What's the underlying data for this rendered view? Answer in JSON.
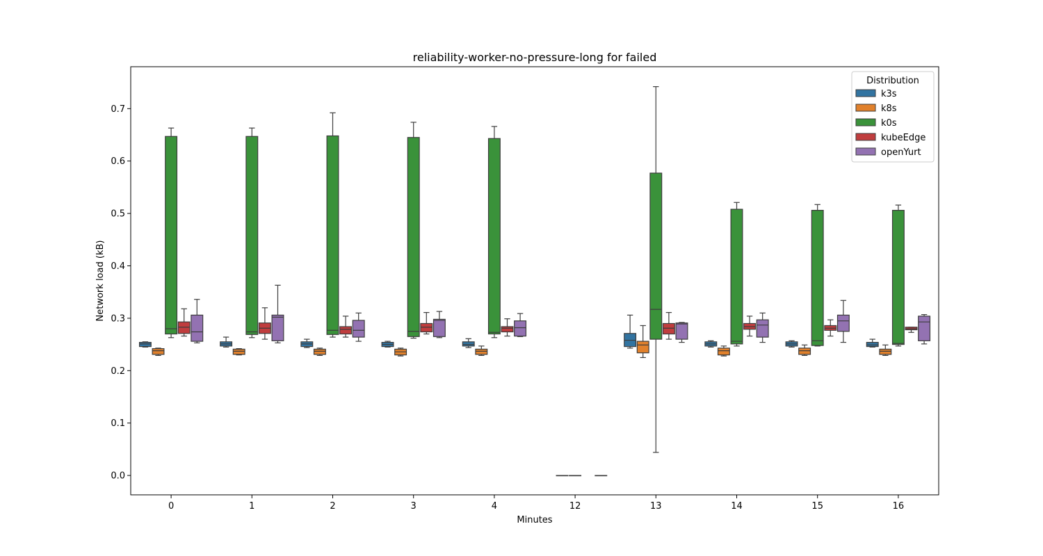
{
  "chart_data": {
    "type": "box",
    "title": "reliability-worker-no-pressure-long for failed",
    "xlabel": "Minutes",
    "ylabel": "Network load (kB)",
    "ylim": [
      -0.037,
      0.78
    ],
    "yticks": [
      0.0,
      0.1,
      0.2,
      0.3,
      0.4,
      0.5,
      0.6,
      0.7
    ],
    "ytick_labels": [
      "0.0",
      "0.1",
      "0.2",
      "0.3",
      "0.4",
      "0.5",
      "0.6",
      "0.7"
    ],
    "categories": [
      "0",
      "1",
      "2",
      "3",
      "4",
      "12",
      "13",
      "14",
      "15",
      "16"
    ],
    "legend": {
      "title": "Distribution",
      "placement": "top-right"
    },
    "series": [
      {
        "name": "k3s",
        "color": "#3274a1",
        "boxes": [
          {
            "min": 0.245,
            "q1": 0.246,
            "median": 0.251,
            "q3": 0.254,
            "max": 0.255
          },
          {
            "min": 0.245,
            "q1": 0.247,
            "median": 0.251,
            "q3": 0.255,
            "max": 0.264
          },
          {
            "min": 0.244,
            "q1": 0.246,
            "median": 0.251,
            "q3": 0.255,
            "max": 0.26
          },
          {
            "min": 0.245,
            "q1": 0.246,
            "median": 0.25,
            "q3": 0.254,
            "max": 0.256
          },
          {
            "min": 0.244,
            "q1": 0.247,
            "median": 0.25,
            "q3": 0.255,
            "max": 0.261
          },
          null,
          {
            "min": 0.243,
            "q1": 0.246,
            "median": 0.258,
            "q3": 0.271,
            "max": 0.306
          },
          {
            "min": 0.245,
            "q1": 0.247,
            "median": 0.251,
            "q3": 0.255,
            "max": 0.257
          },
          {
            "min": 0.245,
            "q1": 0.247,
            "median": 0.251,
            "q3": 0.255,
            "max": 0.257
          },
          {
            "min": 0.245,
            "q1": 0.246,
            "median": 0.249,
            "q3": 0.254,
            "max": 0.26
          }
        ]
      },
      {
        "name": "k8s",
        "color": "#e1812c",
        "boxes": [
          {
            "min": 0.229,
            "q1": 0.231,
            "median": 0.238,
            "q3": 0.242,
            "max": 0.243
          },
          {
            "min": 0.23,
            "q1": 0.231,
            "median": 0.237,
            "q3": 0.241,
            "max": 0.242
          },
          {
            "min": 0.229,
            "q1": 0.231,
            "median": 0.237,
            "q3": 0.241,
            "max": 0.243
          },
          {
            "min": 0.228,
            "q1": 0.23,
            "median": 0.236,
            "q3": 0.241,
            "max": 0.243
          },
          {
            "min": 0.229,
            "q1": 0.231,
            "median": 0.237,
            "q3": 0.241,
            "max": 0.247
          },
          {
            "min": 0.0,
            "q1": 0.0,
            "median": 0.0,
            "q3": 0.0,
            "max": 0.0
          },
          {
            "min": 0.225,
            "q1": 0.234,
            "median": 0.249,
            "q3": 0.256,
            "max": 0.286
          },
          {
            "min": 0.228,
            "q1": 0.23,
            "median": 0.238,
            "q3": 0.243,
            "max": 0.247
          },
          {
            "min": 0.229,
            "q1": 0.231,
            "median": 0.238,
            "q3": 0.243,
            "max": 0.249
          },
          {
            "min": 0.229,
            "q1": 0.231,
            "median": 0.237,
            "q3": 0.241,
            "max": 0.249
          }
        ]
      },
      {
        "name": "k0s",
        "color": "#3a923a",
        "boxes": [
          {
            "min": 0.263,
            "q1": 0.27,
            "median": 0.28,
            "q3": 0.647,
            "max": 0.663
          },
          {
            "min": 0.263,
            "q1": 0.269,
            "median": 0.274,
            "q3": 0.647,
            "max": 0.663
          },
          {
            "min": 0.264,
            "q1": 0.269,
            "median": 0.277,
            "q3": 0.648,
            "max": 0.692
          },
          {
            "min": 0.262,
            "q1": 0.265,
            "median": 0.275,
            "q3": 0.645,
            "max": 0.674
          },
          {
            "min": 0.263,
            "q1": 0.27,
            "median": 0.273,
            "q3": 0.643,
            "max": 0.666
          },
          {
            "min": 0.0,
            "q1": 0.0,
            "median": 0.0,
            "q3": 0.0,
            "max": 0.0
          },
          {
            "min": 0.044,
            "q1": 0.26,
            "median": 0.317,
            "q3": 0.577,
            "max": 0.742
          },
          {
            "min": 0.247,
            "q1": 0.251,
            "median": 0.256,
            "q3": 0.508,
            "max": 0.521
          },
          {
            "min": 0.247,
            "q1": 0.248,
            "median": 0.257,
            "q3": 0.506,
            "max": 0.517
          },
          {
            "min": 0.247,
            "q1": 0.25,
            "median": 0.252,
            "q3": 0.506,
            "max": 0.516
          }
        ]
      },
      {
        "name": "kubeEdge",
        "color": "#c03d3e",
        "boxes": [
          {
            "min": 0.266,
            "q1": 0.271,
            "median": 0.283,
            "q3": 0.293,
            "max": 0.318
          },
          {
            "min": 0.26,
            "q1": 0.271,
            "median": 0.281,
            "q3": 0.291,
            "max": 0.32
          },
          {
            "min": 0.264,
            "q1": 0.27,
            "median": 0.279,
            "q3": 0.284,
            "max": 0.304
          },
          {
            "min": 0.27,
            "q1": 0.274,
            "median": 0.283,
            "q3": 0.29,
            "max": 0.311
          },
          {
            "min": 0.266,
            "q1": 0.274,
            "median": 0.281,
            "q3": 0.284,
            "max": 0.299
          },
          null,
          {
            "min": 0.26,
            "q1": 0.27,
            "median": 0.281,
            "q3": 0.29,
            "max": 0.311
          },
          {
            "min": 0.266,
            "q1": 0.279,
            "median": 0.284,
            "q3": 0.29,
            "max": 0.304
          },
          {
            "min": 0.266,
            "q1": 0.277,
            "median": 0.281,
            "q3": 0.286,
            "max": 0.297
          },
          {
            "min": 0.273,
            "q1": 0.278,
            "median": 0.28,
            "q3": 0.283,
            "max": 0.283
          }
        ]
      },
      {
        "name": "openYurt",
        "color": "#9372b2",
        "boxes": [
          {
            "min": 0.253,
            "q1": 0.256,
            "median": 0.274,
            "q3": 0.306,
            "max": 0.336
          },
          {
            "min": 0.253,
            "q1": 0.257,
            "median": 0.302,
            "q3": 0.306,
            "max": 0.363
          },
          {
            "min": 0.256,
            "q1": 0.264,
            "median": 0.277,
            "q3": 0.296,
            "max": 0.31
          },
          {
            "min": 0.263,
            "q1": 0.265,
            "median": 0.296,
            "q3": 0.298,
            "max": 0.313
          },
          {
            "min": 0.265,
            "q1": 0.266,
            "median": 0.282,
            "q3": 0.295,
            "max": 0.309
          },
          {
            "min": 0.0,
            "q1": 0.0,
            "median": 0.0,
            "q3": 0.0,
            "max": 0.0
          },
          {
            "min": 0.254,
            "q1": 0.26,
            "median": 0.289,
            "q3": 0.291,
            "max": 0.292
          },
          {
            "min": 0.254,
            "q1": 0.264,
            "median": 0.287,
            "q3": 0.297,
            "max": 0.31
          },
          {
            "min": 0.254,
            "q1": 0.275,
            "median": 0.295,
            "q3": 0.306,
            "max": 0.334
          },
          {
            "min": 0.251,
            "q1": 0.257,
            "median": 0.293,
            "q3": 0.304,
            "max": 0.307
          }
        ]
      }
    ]
  }
}
